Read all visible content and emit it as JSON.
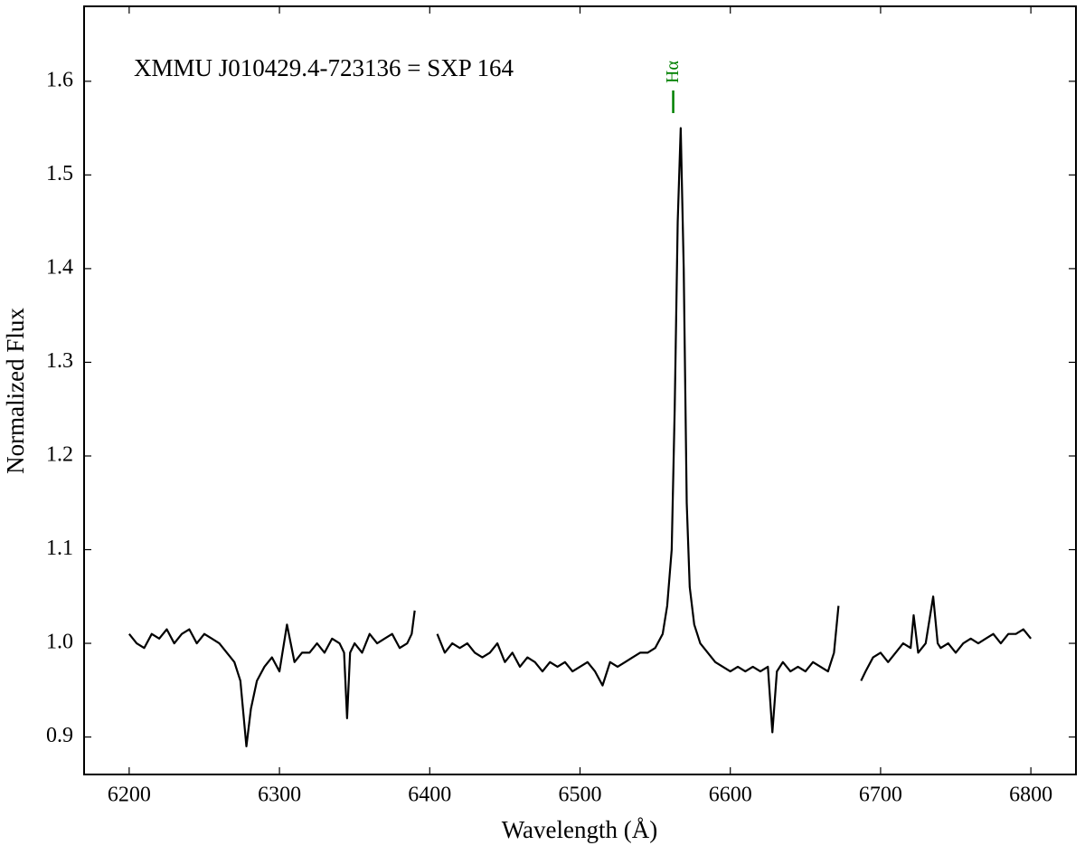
{
  "chart_data": {
    "type": "line",
    "title": "XMMU J010429.4-723136 = SXP 164",
    "x_label": "Wavelength (Å)",
    "y_label": "Normalized Flux",
    "xlim": [
      6170,
      6830
    ],
    "ylim": [
      0.86,
      1.68
    ],
    "xticks": [
      6200,
      6300,
      6400,
      6500,
      6600,
      6700,
      6800
    ],
    "yticks": [
      0.9,
      {
        "value": 1,
        "label": "1.0"
      },
      1.1,
      1.2,
      1.3,
      1.4,
      1.5,
      1.6
    ],
    "annotation": {
      "text": "Hα",
      "x": 6562,
      "color": "#008000"
    },
    "series": [
      {
        "color": "#000000",
        "x": [
          6200,
          6205,
          6210,
          6215,
          6220,
          6225,
          6230,
          6235,
          6240,
          6245,
          6250,
          6255,
          6260,
          6265,
          6270,
          6274,
          6278,
          6281,
          6285,
          6290,
          6295,
          6300,
          6305,
          6310,
          6315,
          6320,
          6325,
          6330,
          6335,
          6340,
          6343,
          6345,
          6347,
          6350,
          6355,
          6360,
          6365,
          6370,
          6375,
          6380,
          6385,
          6388,
          6390,
          6397,
          6405,
          6410,
          6415,
          6420,
          6425,
          6430,
          6435,
          6440,
          6445,
          6450,
          6455,
          6460,
          6465,
          6470,
          6475,
          6480,
          6485,
          6490,
          6495,
          6500,
          6505,
          6510,
          6515,
          6520,
          6525,
          6530,
          6535,
          6540,
          6545,
          6550,
          6555,
          6558,
          6561,
          6563,
          6565,
          6567,
          6569,
          6571,
          6573,
          6576,
          6580,
          6585,
          6590,
          6595,
          6600,
          6605,
          6610,
          6615,
          6620,
          6625,
          6628,
          6631,
          6635,
          6640,
          6645,
          6650,
          6655,
          6660,
          6665,
          6669,
          6672,
          6680,
          6687,
          6690,
          6695,
          6700,
          6705,
          6710,
          6715,
          6720,
          6722,
          6725,
          6730,
          6735,
          6738,
          6740,
          6745,
          6750,
          6755,
          6760,
          6765,
          6770,
          6775,
          6780,
          6785,
          6790,
          6795,
          6800
        ],
        "values": [
          1.01,
          1.0,
          0.995,
          1.01,
          1.005,
          1.015,
          1.0,
          1.01,
          1.015,
          1.0,
          1.01,
          1.005,
          1.0,
          0.99,
          0.98,
          0.96,
          0.89,
          0.93,
          0.96,
          0.975,
          0.985,
          0.97,
          1.02,
          0.98,
          0.99,
          0.99,
          1.0,
          0.99,
          1.005,
          1.0,
          0.99,
          0.92,
          0.99,
          1.0,
          0.99,
          1.01,
          1.0,
          1.005,
          1.01,
          0.995,
          1.0,
          1.01,
          1.035,
          null,
          1.01,
          0.99,
          1.0,
          0.995,
          1.0,
          0.99,
          0.985,
          0.99,
          1.0,
          0.98,
          0.99,
          0.975,
          0.985,
          0.98,
          0.97,
          0.98,
          0.975,
          0.98,
          0.97,
          0.975,
          0.98,
          0.97,
          0.955,
          0.98,
          0.975,
          0.98,
          0.985,
          0.99,
          0.99,
          0.995,
          1.01,
          1.04,
          1.1,
          1.25,
          1.45,
          1.55,
          1.4,
          1.15,
          1.06,
          1.02,
          1.0,
          0.99,
          0.98,
          0.975,
          0.97,
          0.975,
          0.97,
          0.975,
          0.97,
          0.975,
          0.905,
          0.97,
          0.98,
          0.97,
          0.975,
          0.97,
          0.98,
          0.975,
          0.97,
          0.99,
          1.04,
          null,
          0.96,
          0.97,
          0.985,
          0.99,
          0.98,
          0.99,
          1.0,
          0.995,
          1.03,
          0.99,
          1.0,
          1.05,
          1.0,
          0.995,
          1.0,
          0.99,
          1.0,
          1.005,
          1.0,
          1.005,
          1.01,
          1.0,
          1.01,
          1.01,
          1.015,
          1.005
        ]
      }
    ]
  }
}
